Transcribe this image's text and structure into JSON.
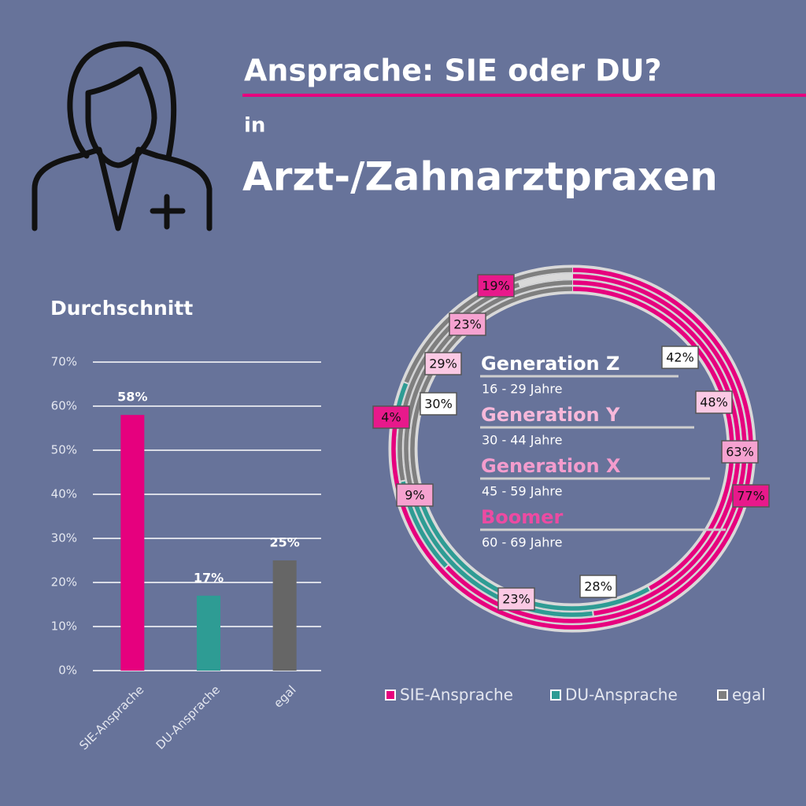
{
  "header": {
    "title": "Ansprache: SIE oder DU?",
    "subtitle": "in",
    "heading": "Arzt-/Zahnarztpraxen"
  },
  "chart_data": [
    {
      "type": "bar",
      "title": "Durchschnitt",
      "categories": [
        "SIE-Ansprache",
        "DU-Ansprache",
        "egal"
      ],
      "values": [
        58,
        17,
        25
      ],
      "value_labels": [
        "58%",
        "17%",
        "25%"
      ],
      "colors": [
        "#e6007e",
        "#2e9c94",
        "#666666"
      ],
      "ylim": [
        0,
        70
      ],
      "yticks": [
        {
          "value": 0,
          "label": "0%"
        },
        {
          "value": 10,
          "label": "10%"
        },
        {
          "value": 20,
          "label": "20%"
        },
        {
          "value": 30,
          "label": "30%"
        },
        {
          "value": 40,
          "label": "40%"
        },
        {
          "value": 50,
          "label": "50%"
        },
        {
          "value": 60,
          "label": "60%"
        },
        {
          "value": 70,
          "label": "70%"
        }
      ],
      "grid": true
    },
    {
      "type": "donut",
      "categories": [
        "Generation Z",
        "Generation Y",
        "Generation X",
        "Boomer"
      ],
      "category_subtitles": [
        "16 - 29 Jahre",
        "30 - 44 Jahre",
        "45 - 59 Jahre",
        "60 - 69 Jahre"
      ],
      "category_colors": [
        "#ffffff",
        "#f7b8da",
        "#f39ccd",
        "#ec4ba2"
      ],
      "label_colors": [
        "#ffffff",
        "#fbc9e4",
        "#f6a2d0",
        "#e8198b"
      ],
      "series": [
        {
          "name": "SIE-Ansprache",
          "color": "#e6007e",
          "values": [
            42,
            48,
            63,
            77
          ],
          "value_labels": [
            "42%",
            "48%",
            "63%",
            "77%"
          ]
        },
        {
          "name": "DU-Ansprache",
          "color": "#2e9c94",
          "values": [
            28,
            23,
            9,
            4
          ],
          "value_labels": [
            "28%",
            "23%",
            "9%",
            "4%"
          ]
        },
        {
          "name": "egal",
          "color": "#7f7f7f",
          "values": [
            30,
            29,
            23,
            19
          ],
          "value_labels": [
            "30%",
            "29%",
            "23%",
            "19%"
          ]
        }
      ],
      "legend": "bottom"
    }
  ]
}
